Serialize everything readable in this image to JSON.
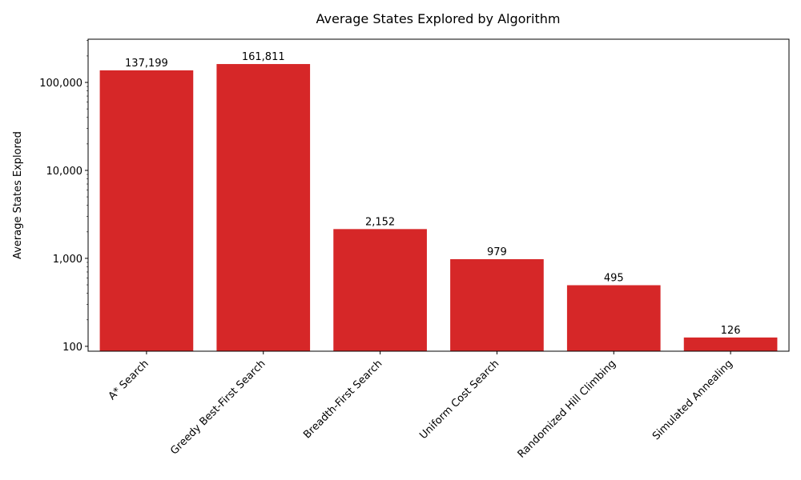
{
  "chart_data": {
    "type": "bar",
    "title": "Average States Explored by Algorithm",
    "xlabel": "",
    "ylabel": "Average States Explored",
    "yscale": "log",
    "ylim": [
      88,
      310000
    ],
    "yticks": [
      {
        "value": 100,
        "label": "100"
      },
      {
        "value": 1000,
        "label": "1,000"
      },
      {
        "value": 10000,
        "label": "10,000"
      },
      {
        "value": 100000,
        "label": "100,000"
      }
    ],
    "categories": [
      "A* Search",
      "Greedy Best-First Search",
      "Breadth-First Search",
      "Uniform Cost Search",
      "Randomized Hill Climbing",
      "Simulated Annealing"
    ],
    "values": [
      137199,
      161811,
      2152,
      979,
      495,
      126
    ],
    "value_labels": [
      "137,199",
      "161,811",
      "2,152",
      "979",
      "495",
      "126"
    ],
    "bar_color": "#d62728",
    "grid": false,
    "legend": "none"
  }
}
